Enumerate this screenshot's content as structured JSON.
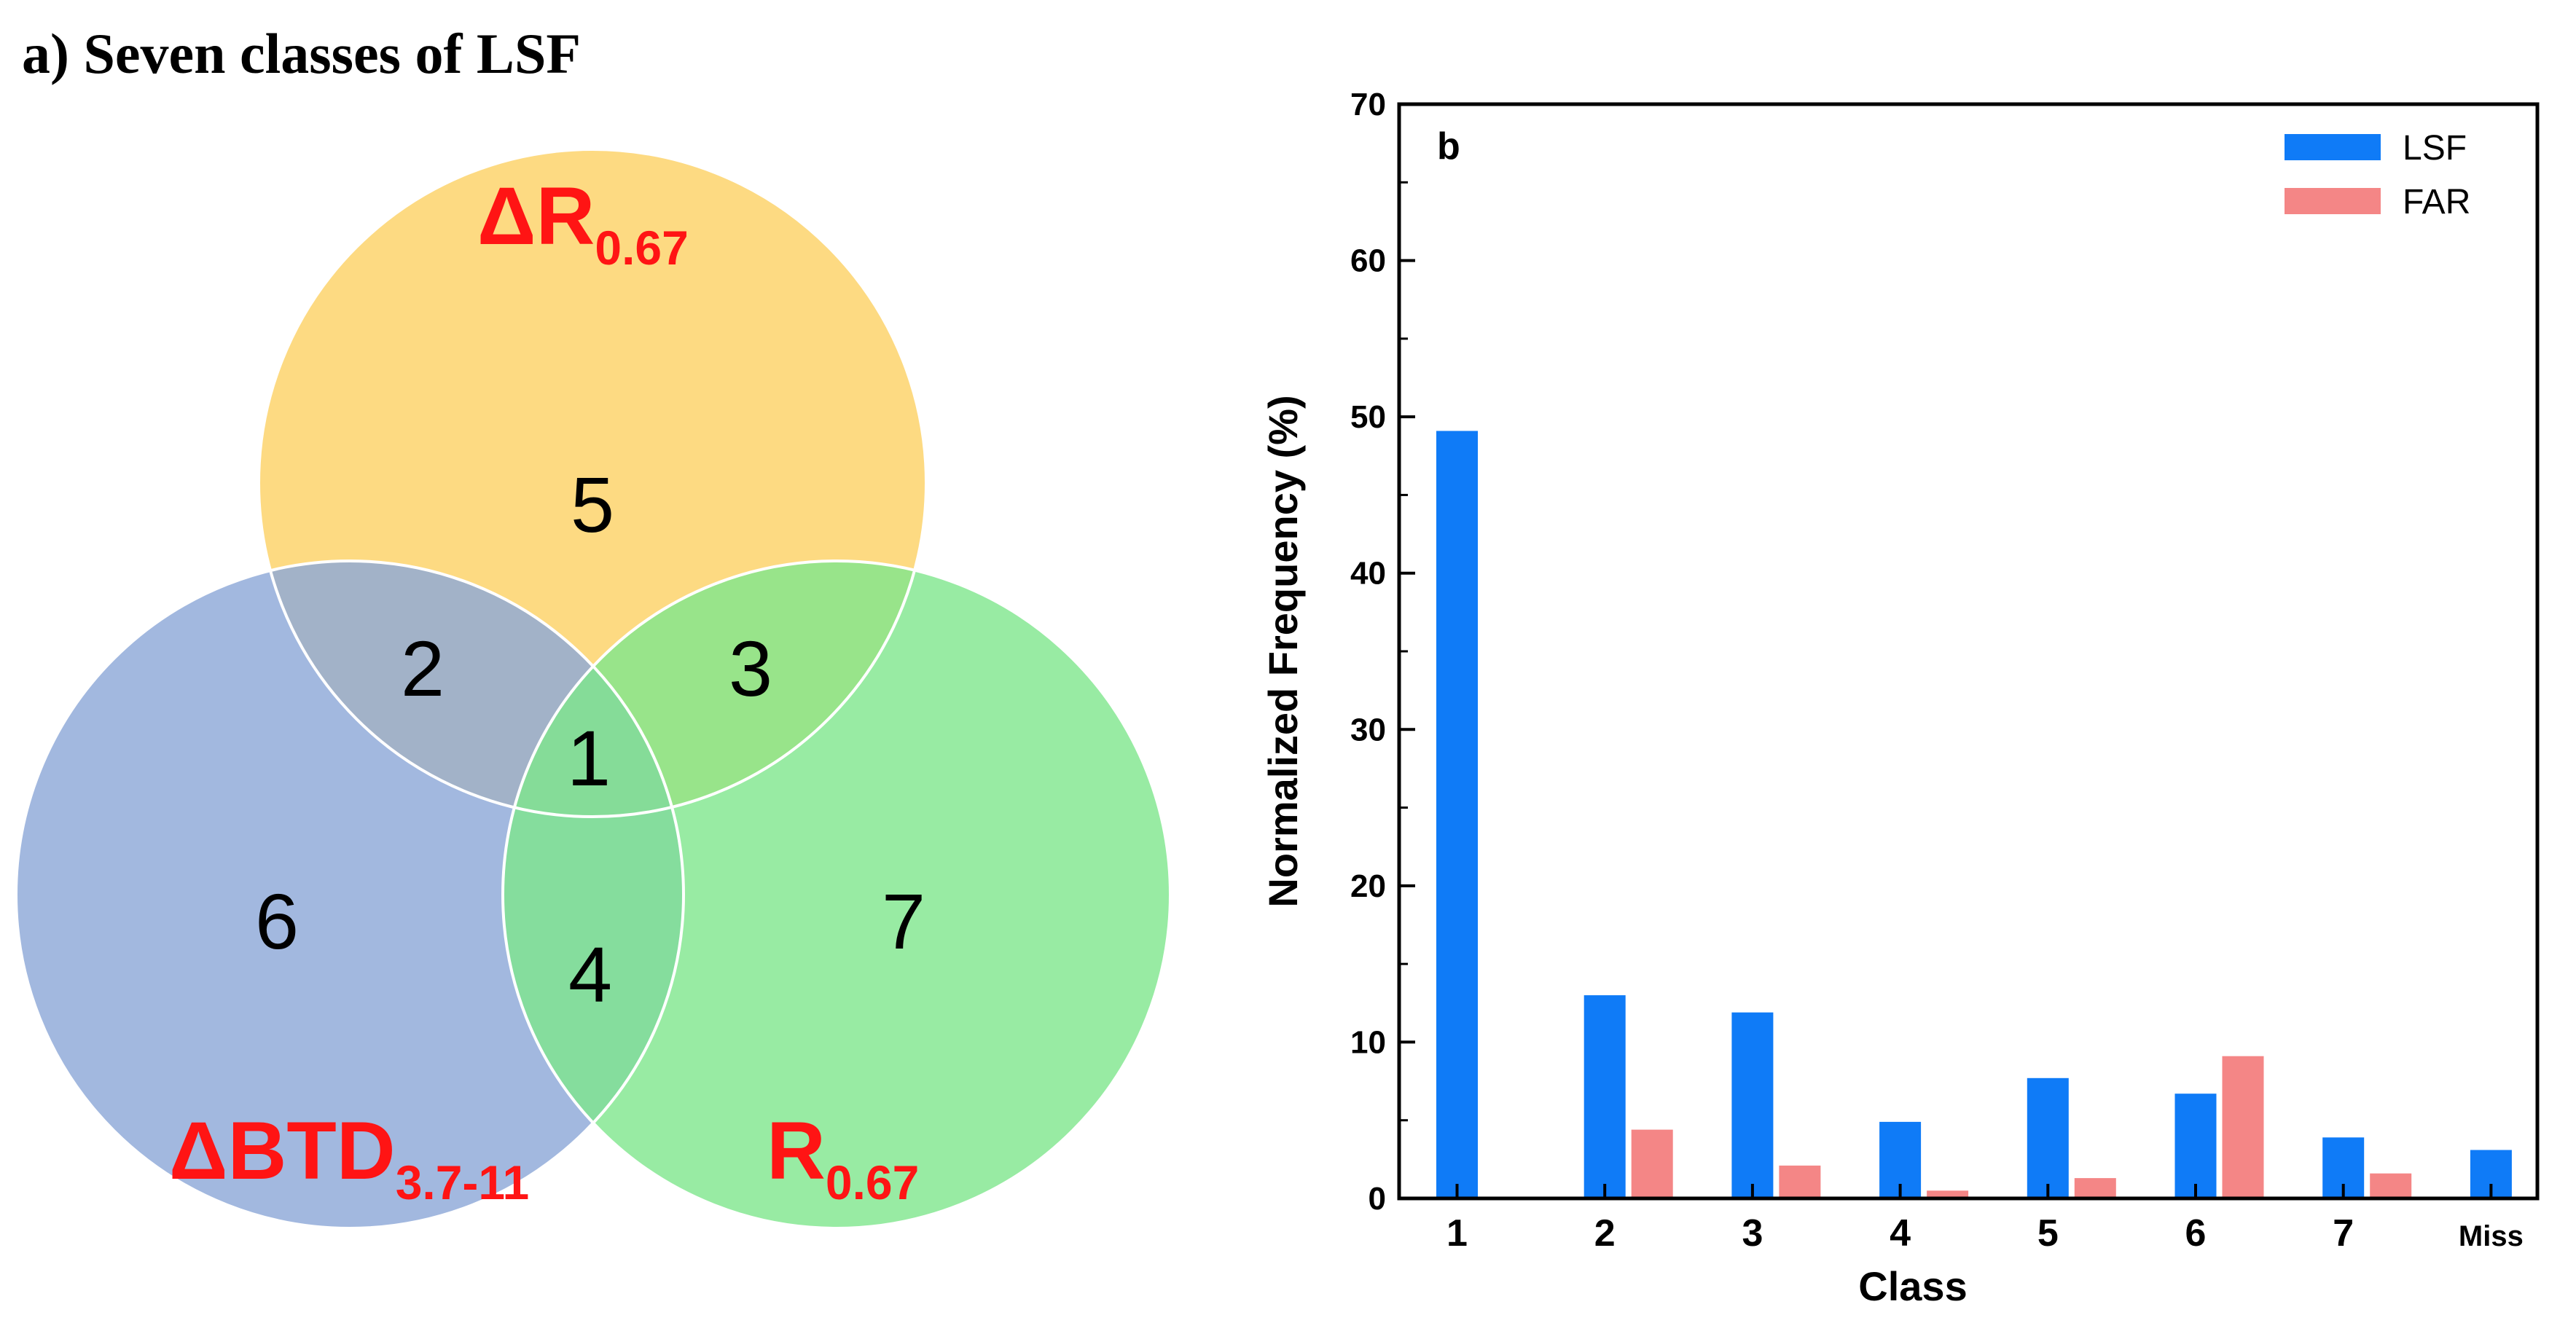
{
  "venn": {
    "title": "a) Seven classes of LSF",
    "sets": {
      "top": {
        "label_main": "ΔR",
        "label_sub": "0.67",
        "color": "#fdd46c"
      },
      "left": {
        "label_main": "ΔBTD",
        "label_sub": "3.7-11",
        "color": "#8ea8d8"
      },
      "right": {
        "label_main": "R",
        "label_sub": "0.67",
        "color": "#7ee68c"
      }
    },
    "label_color": "#ff1414",
    "regions": [
      "1",
      "2",
      "3",
      "4",
      "5",
      "6",
      "7"
    ]
  },
  "chart_data": {
    "type": "bar",
    "panel_label": "b",
    "title": "",
    "xlabel": "Class",
    "ylabel": "Normalized Frequency (%)",
    "ylim": [
      0,
      70
    ],
    "yticks": [
      "0",
      "10",
      "20",
      "30",
      "40",
      "50",
      "60",
      "70"
    ],
    "categories": [
      "1",
      "2",
      "3",
      "4",
      "5",
      "6",
      "7",
      "Miss"
    ],
    "series": [
      {
        "name": "LSF",
        "color": "#0f7bf7",
        "values": [
          49.1,
          13.0,
          11.9,
          4.9,
          7.7,
          6.7,
          3.9,
          3.1
        ]
      },
      {
        "name": "FAR",
        "color": "#f48686",
        "values": [
          0,
          4.4,
          2.1,
          0.5,
          1.3,
          9.1,
          1.6,
          0
        ]
      }
    ],
    "legend_position": "top-right",
    "grid": false
  }
}
